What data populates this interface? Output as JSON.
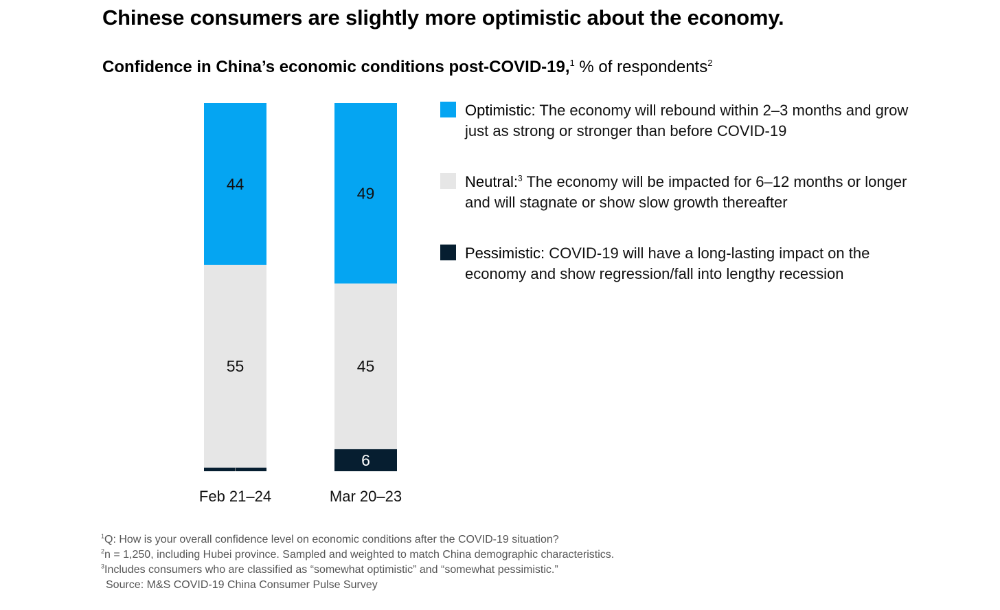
{
  "title": "Chinese consumers are slightly more optimistic about the economy.",
  "subtitle": {
    "main": "Confidence in China’s economic conditions post-COVID-19,",
    "sup1": "1",
    "unit": " % of respondents",
    "sup2": "2"
  },
  "colors": {
    "optimistic": "#05A5F2",
    "neutral": "#E6E6E6",
    "pessimistic": "#061E30"
  },
  "legend": [
    {
      "key": "optimistic",
      "label": "Optimistic:",
      "sup": "",
      "text": " The economy will rebound within 2–3 months and grow just as strong or stronger than before COVID-19"
    },
    {
      "key": "neutral",
      "label": "Neutral:",
      "sup": "3",
      "text": " The economy will be impacted for 6–12 months or longer and will stagnate or show slow growth thereafter"
    },
    {
      "key": "pessimistic",
      "label": "Pessimistic:",
      "sup": "",
      "text": " COVID-19 will have a long-lasting impact on the economy and show regression/fall into lengthy recession"
    }
  ],
  "chart_data": {
    "type": "bar",
    "stacked": true,
    "categories": [
      "Feb 21–24",
      "Mar 20–23"
    ],
    "series": [
      {
        "name": "Pessimistic",
        "key": "pessimistic",
        "values": [
          1,
          6
        ]
      },
      {
        "name": "Neutral",
        "key": "neutral",
        "values": [
          55,
          45
        ]
      },
      {
        "name": "Optimistic",
        "key": "optimistic",
        "values": [
          44,
          49
        ]
      }
    ],
    "ylim": [
      0,
      100
    ],
    "grid": false,
    "legend_position": "right"
  },
  "footnotes": [
    {
      "sup": "1",
      "text": "Q: How is your overall confidence level on economic conditions after the COVID-19 situation?"
    },
    {
      "sup": "2",
      "text": "n = 1,250, including Hubei province. Sampled and weighted to match China demographic characteristics."
    },
    {
      "sup": "3",
      "text": "Includes consumers who are classified as “somewhat optimistic” and “somewhat pessimistic.”"
    }
  ],
  "source": "Source: M&S COVID-19 China Consumer Pulse Survey"
}
